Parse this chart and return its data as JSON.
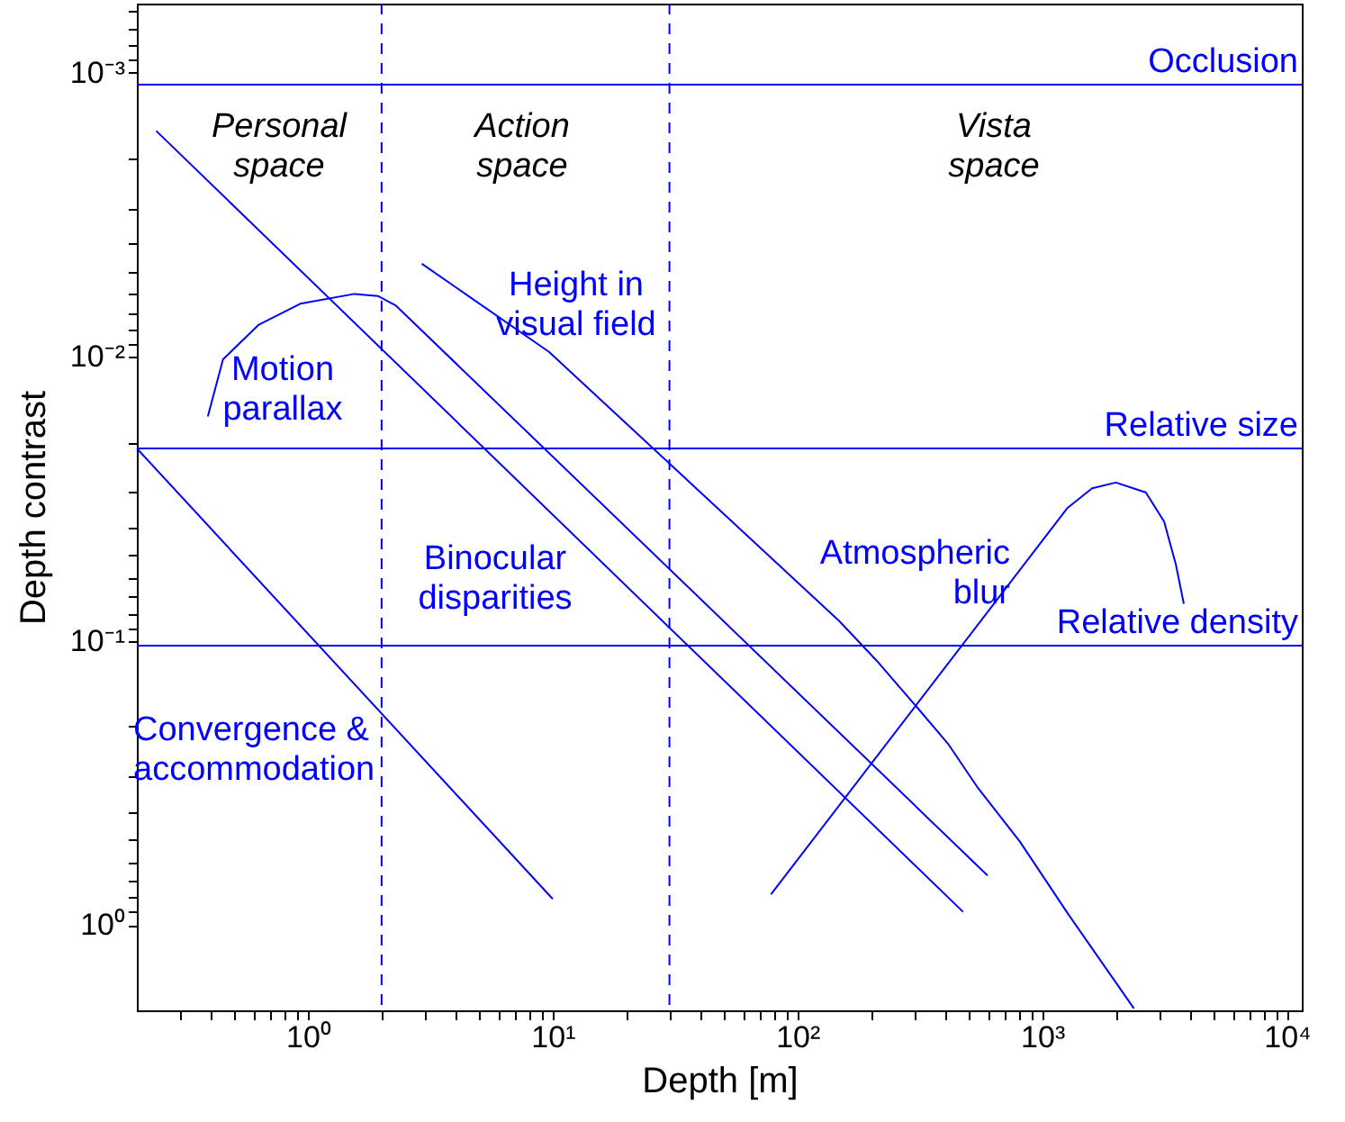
{
  "chart_data": {
    "type": "line",
    "xlabel": "Depth [m]",
    "ylabel": "Depth contrast",
    "log": "xy",
    "grid": false,
    "marker": "none",
    "line_style": "solid",
    "xlim": [
      0.2,
      11500
    ],
    "ylim": [
      2,
      0.00057
    ],
    "xticks": [
      {
        "value": 0.3,
        "label": null
      },
      {
        "value": 0.4,
        "label": null
      },
      {
        "value": 0.5,
        "label": null
      },
      {
        "value": 0.6,
        "label": null
      },
      {
        "value": 0.7,
        "label": null
      },
      {
        "value": 0.8,
        "label": null
      },
      {
        "value": 0.9,
        "label": null
      },
      {
        "value": 1,
        "label": "10⁰"
      },
      {
        "value": 2,
        "label": null
      },
      {
        "value": 3,
        "label": null
      },
      {
        "value": 4,
        "label": null
      },
      {
        "value": 5,
        "label": null
      },
      {
        "value": 6,
        "label": null
      },
      {
        "value": 7,
        "label": null
      },
      {
        "value": 8,
        "label": null
      },
      {
        "value": 9,
        "label": null
      },
      {
        "value": 10,
        "label": "10¹"
      },
      {
        "value": 20,
        "label": null
      },
      {
        "value": 30,
        "label": null
      },
      {
        "value": 40,
        "label": null
      },
      {
        "value": 50,
        "label": null
      },
      {
        "value": 60,
        "label": null
      },
      {
        "value": 70,
        "label": null
      },
      {
        "value": 80,
        "label": null
      },
      {
        "value": 90,
        "label": null
      },
      {
        "value": 100,
        "label": "10²"
      },
      {
        "value": 200,
        "label": null
      },
      {
        "value": 300,
        "label": null
      },
      {
        "value": 400,
        "label": null
      },
      {
        "value": 500,
        "label": null
      },
      {
        "value": 600,
        "label": null
      },
      {
        "value": 700,
        "label": null
      },
      {
        "value": 800,
        "label": null
      },
      {
        "value": 900,
        "label": null
      },
      {
        "value": 1000,
        "label": "10³"
      },
      {
        "value": 2000,
        "label": null
      },
      {
        "value": 3000,
        "label": null
      },
      {
        "value": 4000,
        "label": null
      },
      {
        "value": 5000,
        "label": null
      },
      {
        "value": 6000,
        "label": null
      },
      {
        "value": 7000,
        "label": null
      },
      {
        "value": 8000,
        "label": null
      },
      {
        "value": 9000,
        "label": null
      },
      {
        "value": 10000,
        "label": "10⁴"
      }
    ],
    "yticks": [
      {
        "value": 0.0006,
        "label": null
      },
      {
        "value": 0.0007,
        "label": null
      },
      {
        "value": 0.0008,
        "label": null
      },
      {
        "value": 0.0009,
        "label": null
      },
      {
        "value": 0.001,
        "label": "10⁻³"
      },
      {
        "value": 0.002,
        "label": null
      },
      {
        "value": 0.003,
        "label": null
      },
      {
        "value": 0.004,
        "label": null
      },
      {
        "value": 0.005,
        "label": null
      },
      {
        "value": 0.006,
        "label": null
      },
      {
        "value": 0.007,
        "label": null
      },
      {
        "value": 0.008,
        "label": null
      },
      {
        "value": 0.009,
        "label": null
      },
      {
        "value": 0.01,
        "label": "10⁻²"
      },
      {
        "value": 0.02,
        "label": null
      },
      {
        "value": 0.03,
        "label": null
      },
      {
        "value": 0.04,
        "label": null
      },
      {
        "value": 0.05,
        "label": null
      },
      {
        "value": 0.06,
        "label": null
      },
      {
        "value": 0.07,
        "label": null
      },
      {
        "value": 0.08,
        "label": null
      },
      {
        "value": 0.09,
        "label": null
      },
      {
        "value": 0.1,
        "label": "10⁻¹"
      },
      {
        "value": 0.2,
        "label": null
      },
      {
        "value": 0.3,
        "label": null
      },
      {
        "value": 0.4,
        "label": null
      },
      {
        "value": 0.5,
        "label": null
      },
      {
        "value": 0.6,
        "label": null
      },
      {
        "value": 0.7,
        "label": null
      },
      {
        "value": 0.8,
        "label": null
      },
      {
        "value": 0.9,
        "label": null
      },
      {
        "value": 1,
        "label": "10⁰"
      }
    ],
    "series": [
      {
        "name": "Convergence &\naccommodation",
        "color": "#0000ff",
        "x": [
          0.2,
          10
        ],
        "values": [
          0.021,
          0.81
        ]
      },
      {
        "name": "Binocular\ndisparities",
        "color": "#0000ff",
        "x": [
          0.24,
          475
        ],
        "values": [
          0.0016,
          0.9
        ]
      },
      {
        "name": "Motion\nparallax",
        "color": "#0000ff",
        "x": [
          0.39,
          0.45,
          0.63,
          0.93,
          1.55,
          1.93,
          2.29,
          598
        ],
        "values": [
          0.0162,
          0.0102,
          0.0077,
          0.0065,
          0.006,
          0.0061,
          0.0066,
          0.67
        ]
      },
      {
        "name": "Height in\nvisual field",
        "color": "#0000ff",
        "x": [
          2.92,
          9.66,
          148,
          210,
          311,
          412,
          547,
          812,
          1270,
          2370
        ],
        "values": [
          0.0047,
          0.0096,
          0.085,
          0.117,
          0.173,
          0.23,
          0.33,
          0.51,
          0.91,
          1.97
        ]
      },
      {
        "name": "Atmospheric\nblur",
        "color": "#0000ff",
        "x": [
          78,
          1270,
          1600,
          2000,
          2650,
          3150,
          3520,
          3790
        ],
        "values": [
          0.78,
          0.034,
          0.029,
          0.0277,
          0.03,
          0.038,
          0.054,
          0.074
        ]
      }
    ],
    "ref_lines": [
      {
        "axis": "y",
        "value": 0.0011,
        "label": "Occlusion",
        "color": "#0000ff"
      },
      {
        "axis": "y",
        "value": 0.021,
        "label": "Relative size",
        "color": "#0000ff"
      },
      {
        "axis": "y",
        "value": 0.104,
        "label": "Relative density",
        "color": "#0000ff"
      },
      {
        "axis": "x",
        "value": 2,
        "color": "#0000ff",
        "line_style": "dashed"
      },
      {
        "axis": "x",
        "value": 30,
        "color": "#0000ff",
        "line_style": "dashed"
      }
    ],
    "annotations": [
      "Personal\nspace",
      "Action\nspace",
      "Vista\nspace"
    ]
  }
}
